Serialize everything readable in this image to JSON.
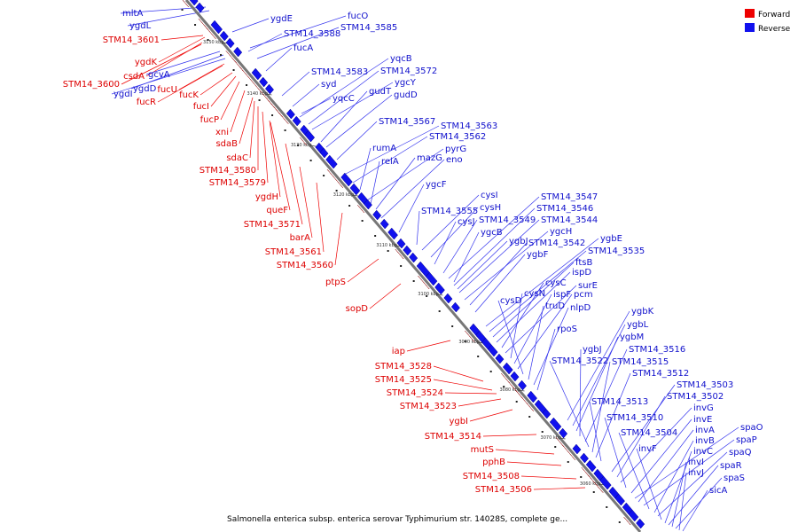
{
  "legend": {
    "items": [
      {
        "label": "Forward",
        "color": "#ee0000"
      },
      {
        "label": "Reverse",
        "color": "#1111ee"
      }
    ]
  },
  "caption": "Salmonella enterica subsp. enterica serovar Typhimurium str. 14028S, complete ge...",
  "colors": {
    "forward": "#ee0000",
    "forward_label": "#dd0000",
    "reverse": "#1111ee",
    "reverse_label": "#1010cc",
    "axis": "#777777",
    "connector_forward": "#ee0000",
    "connector_reverse": "#3333ee"
  },
  "ticks": [
    "3150 kbp",
    "3140 kbp",
    "3130 kbp",
    "3120 kbp",
    "3110 kbp",
    "3100 kbp",
    "3090 kbp",
    "3080 kbp",
    "3070 kbp",
    "3060 kbp"
  ],
  "forward_genes": [
    "STM14_3601",
    "ygdK",
    "csdA",
    "STM14_3600",
    "fucU",
    "fucR",
    "fucK",
    "fucI",
    "fucP",
    "xni",
    "sdaB",
    "sdaC",
    "STM14_3580",
    "STM14_3579",
    "ygdH",
    "queF",
    "STM14_3571",
    "barA",
    "STM14_3561",
    "STM14_3560",
    "ptpS",
    "sopD",
    "iap",
    "STM14_3528",
    "STM14_3525",
    "STM14_3524",
    "STM14_3523",
    "ygbI",
    "STM14_3514",
    "mutS",
    "pphB",
    "STM14_3508",
    "STM14_3506"
  ],
  "reverse_genes": [
    "mltA",
    "ygdL",
    "ygdE",
    "gcvA",
    "ygdD",
    "ygdI",
    "fucO",
    "STM14_3588",
    "STM14_3585",
    "fucA",
    "STM14_3583",
    "syd",
    "yqcB",
    "STM14_3572",
    "yqcC",
    "ygcY",
    "gudT",
    "gudD",
    "STM14_3567",
    "STM14_3563",
    "STM14_3562",
    "rumA",
    "pyrG",
    "relA",
    "mazG",
    "eno",
    "ygcF",
    "cysI",
    "STM14_3555",
    "cysH",
    "cysJ",
    "STM14_3549",
    "STM14_3547",
    "STM14_3546",
    "STM14_3544",
    "ygcB",
    "ygbJ",
    "ygcH",
    "STM14_3542",
    "ygbF",
    "ygbE",
    "STM14_3535",
    "ftsB",
    "ispD",
    "cysC",
    "surE",
    "cysN",
    "ispF",
    "pcm",
    "cysD",
    "truD",
    "nlpD",
    "rpoS",
    "ygbK",
    "ygbL",
    "ygbM",
    "ygbJ",
    "STM14_3516",
    "STM14_3522",
    "STM14_3515",
    "STM14_3512",
    "STM14_3513",
    "STM14_3503",
    "STM14_3502",
    "invG",
    "STM14_3510",
    "invE",
    "spaO",
    "invA",
    "spaP",
    "STM14_3504",
    "invB",
    "spaQ",
    "invF",
    "invC",
    "spaR",
    "invI",
    "spaS",
    "invJ",
    "sicA"
  ]
}
